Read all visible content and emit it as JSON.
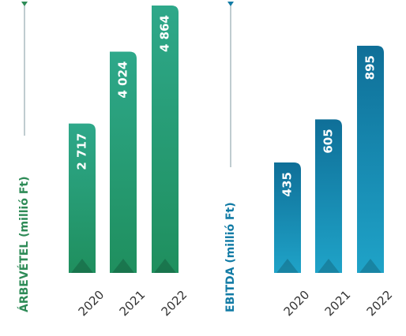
{
  "chart_data": [
    {
      "type": "bar",
      "ylabel": "ÁRBEVÉTEL (millió Ft)",
      "categories": [
        "2020",
        "2021",
        "2022"
      ],
      "values": [
        2717,
        4024,
        4864
      ],
      "value_labels": [
        "2 717",
        "4 024",
        "4 864"
      ],
      "series": [
        {
          "values": [
            2717,
            4024,
            4864
          ]
        }
      ],
      "ylim": [
        0,
        4864
      ],
      "grid": false,
      "colors": {
        "bar_top": "#2ea88a",
        "bar_bottom": "#1f8f5e",
        "label": "#2e8b57",
        "axis": "#7f9aa0"
      }
    },
    {
      "type": "bar",
      "ylabel": "EBITDA (millió Ft)",
      "categories": [
        "2020",
        "2021",
        "2022"
      ],
      "values": [
        435,
        605,
        895
      ],
      "value_labels": [
        "435",
        "605",
        "895"
      ],
      "series": [
        {
          "values": [
            435,
            605,
            895
          ]
        }
      ],
      "ylim": [
        0,
        895
      ],
      "grid": false,
      "colors": {
        "bar_top": "#0f6f98",
        "bar_bottom": "#1fa3c8",
        "label": "#127ba5",
        "axis": "#7f9aa0"
      }
    }
  ]
}
